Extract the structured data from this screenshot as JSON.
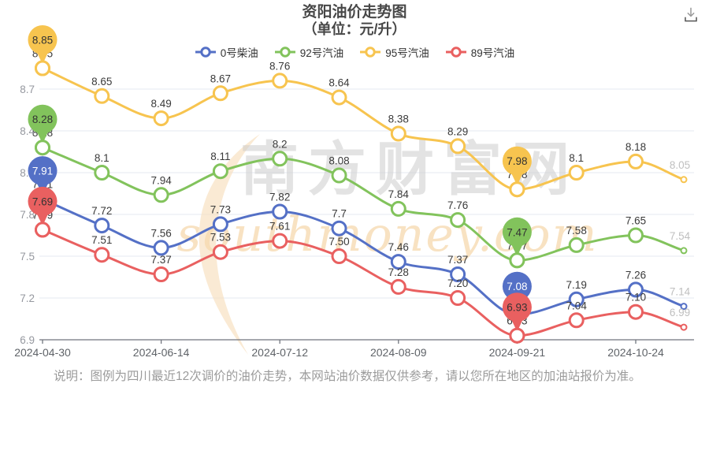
{
  "note": "说明：图例为四川最近12次调价的油价走势，本网站油价数据仅供参考，请以您所在地区的加油站报价为准。",
  "toolbox": {
    "save_icon": "download-icon"
  },
  "watermark": {
    "text_cn": "南方财富网",
    "text_en": "southmoney.com"
  },
  "chart_data": {
    "type": "line",
    "title": "资阳油价走势图",
    "subtitle": "（单位：元/升）",
    "unit": "元/升",
    "x_tick_labels": [
      "2024-04-30",
      "2024-06-14",
      "2024-07-12",
      "2024-08-09",
      "2024-09-21",
      "2024-10-24"
    ],
    "num_points": 12,
    "tick_every_n_points": 2,
    "y_tick_labels": [
      "6.9",
      "7.2",
      "7.5",
      "7.8",
      "8.1",
      "8.4",
      "8.7"
    ],
    "ylim": [
      6.9,
      9.0
    ],
    "grid": true,
    "legend_position": "top",
    "marked_indices": [
      0,
      8
    ],
    "end_label_gray": true,
    "series": [
      {
        "name": "0号柴油",
        "color": "#5470c6",
        "pin_text_color": "#ffffff",
        "values": [
          7.91,
          7.72,
          7.56,
          7.73,
          7.82,
          7.7,
          7.46,
          7.37,
          7.08,
          7.19,
          7.26,
          7.14
        ],
        "labels": [
          "7.91",
          "7.72",
          "7.56",
          "7.73",
          "7.82",
          "7.7",
          "7.46",
          "7.37",
          "7.08",
          "7.19",
          "7.26",
          "7.14"
        ]
      },
      {
        "name": "92号汽油",
        "color": "#82c35c",
        "pin_text_color": "#333333",
        "values": [
          8.28,
          8.1,
          7.94,
          8.11,
          8.2,
          8.08,
          7.84,
          7.76,
          7.47,
          7.58,
          7.65,
          7.54
        ],
        "labels": [
          "8.28",
          "8.1",
          "7.94",
          "8.11",
          "8.2",
          "8.08",
          "7.84",
          "7.76",
          "7.47",
          "7.58",
          "7.65",
          "7.54"
        ]
      },
      {
        "name": "95号汽油",
        "color": "#f7c44f",
        "pin_text_color": "#333333",
        "values": [
          8.85,
          8.65,
          8.49,
          8.67,
          8.76,
          8.64,
          8.38,
          8.29,
          7.98,
          8.1,
          8.18,
          8.05
        ],
        "labels": [
          "8.85",
          "8.65",
          "8.49",
          "8.67",
          "8.76",
          "8.64",
          "8.38",
          "8.29",
          "7.98",
          "8.1",
          "8.18",
          "8.05"
        ]
      },
      {
        "name": "89号汽油",
        "color": "#e96060",
        "pin_text_color": "#333333",
        "values": [
          7.69,
          7.51,
          7.37,
          7.53,
          7.61,
          7.5,
          7.28,
          7.2,
          6.93,
          7.04,
          7.1,
          6.99
        ],
        "labels": [
          "7.69",
          "7.51",
          "7.37",
          "7.53",
          "7.61",
          "7.50",
          "7.28",
          "7.20",
          "6.93",
          "7.04",
          "7.10",
          "6.99"
        ]
      }
    ]
  }
}
